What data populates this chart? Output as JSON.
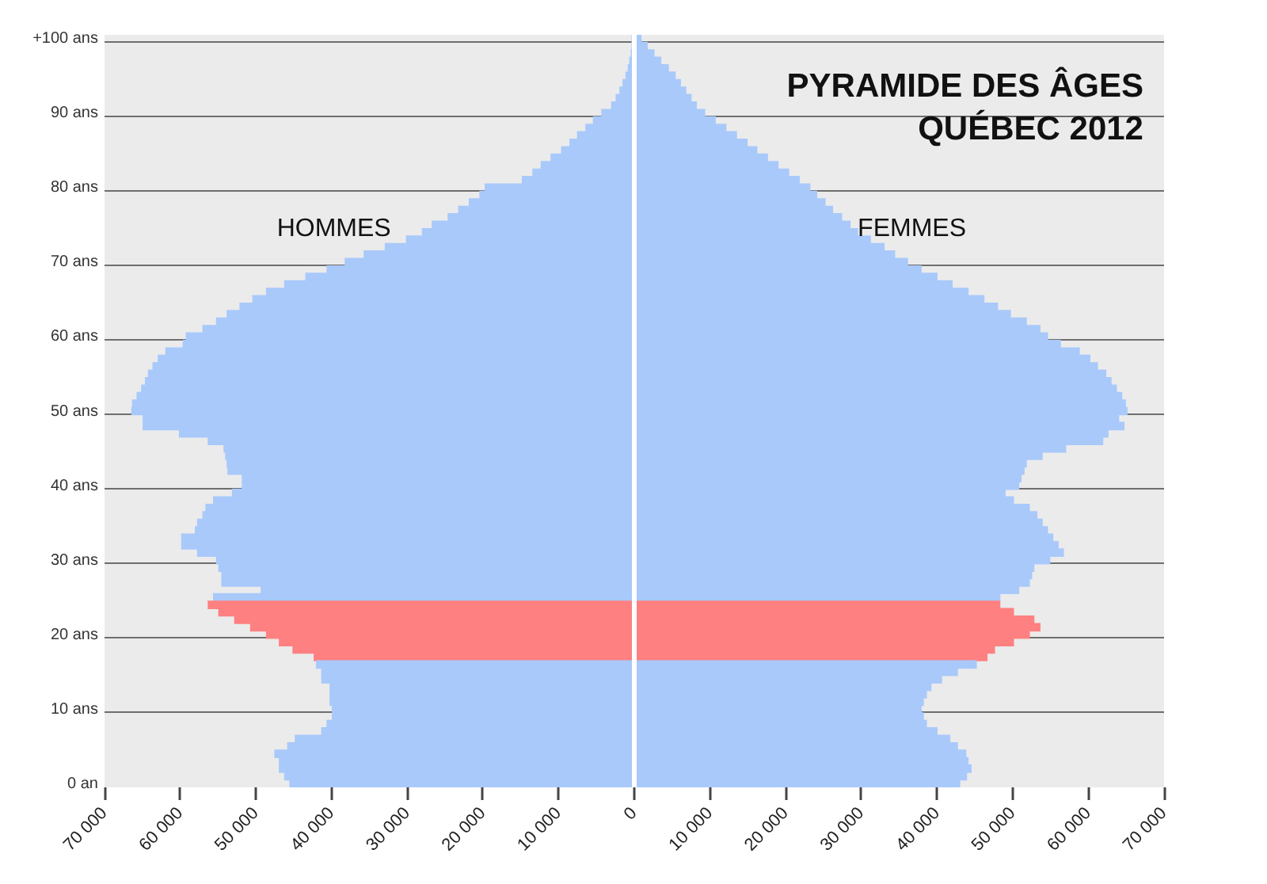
{
  "chart_data": {
    "type": "bar",
    "orientation": "horizontal",
    "stacked": true,
    "title": "PYRAMIDE DES ÂGES\nQUÉBEC 2012",
    "categories": [
      "+100 ans",
      null,
      null,
      null,
      null,
      null,
      null,
      null,
      null,
      null,
      "90 ans",
      null,
      null,
      null,
      null,
      null,
      null,
      null,
      null,
      null,
      "80 ans",
      null,
      null,
      null,
      null,
      null,
      null,
      null,
      null,
      null,
      "70 ans",
      null,
      null,
      null,
      null,
      null,
      null,
      null,
      null,
      null,
      "60 ans",
      null,
      null,
      null,
      null,
      null,
      null,
      null,
      null,
      null,
      "50 ans",
      null,
      null,
      null,
      null,
      null,
      null,
      null,
      null,
      null,
      "40 ans",
      null,
      null,
      null,
      null,
      null,
      null,
      null,
      null,
      null,
      "30 ans",
      null,
      null,
      null,
      null,
      null,
      null,
      null,
      null,
      null,
      "20 ans",
      null,
      null,
      null,
      null,
      null,
      null,
      null,
      null,
      null,
      "10 ans",
      null,
      null,
      null,
      null,
      null,
      null,
      null,
      null,
      null,
      "0 an"
    ],
    "series": [
      {
        "name": "HOMMES",
        "colors": [
          "#a9c9fb",
          "#a9c9fb",
          "#a9c9fb",
          "#a9c9fb",
          "#a9c9fb",
          "#a9c9fb",
          "#a9c9fb",
          "#a9c9fb",
          "#a9c9fb",
          "#a9c9fb",
          "#a9c9fb",
          "#a9c9fb",
          "#a9c9fb",
          "#a9c9fb",
          "#a9c9fb",
          "#a9c9fb",
          "#a9c9fb",
          "#a9c9fb",
          "#a9c9fb",
          "#a9c9fb",
          "#a9c9fb",
          "#a9c9fb",
          "#a9c9fb",
          "#a9c9fb",
          "#a9c9fb",
          "#a9c9fb",
          "#a9c9fb",
          "#a9c9fb",
          "#a9c9fb",
          "#a9c9fb",
          "#a9c9fb",
          "#a9c9fb",
          "#a9c9fb",
          "#a9c9fb",
          "#a9c9fb",
          "#a9c9fb",
          "#a9c9fb",
          "#a9c9fb",
          "#a9c9fb",
          "#a9c9fb",
          "#a9c9fb",
          "#a9c9fb",
          "#a9c9fb",
          "#a9c9fb",
          "#a9c9fb",
          "#a9c9fb",
          "#a9c9fb",
          "#a9c9fb",
          "#a9c9fb",
          "#a9c9fb",
          "#a9c9fb",
          "#a9c9fb",
          "#a9c9fb",
          "#a9c9fb",
          "#a9c9fb",
          "#a9c9fb",
          "#a9c9fb",
          "#a9c9fb",
          "#a9c9fb",
          "#a9c9fb",
          "#a9c9fb",
          "#a9c9fb",
          "#a9c9fb",
          "#a9c9fb",
          "#a9c9fb",
          "#a9c9fb",
          "#a9c9fb",
          "#a9c9fb",
          "#a9c9fb",
          "#a9c9fb",
          "#a9c9fb",
          "#a9c9fb",
          "#a9c9fb",
          "#a9c9fb",
          "#a9c9fb",
          "#a9c9fb",
          "#fe8080",
          "#fe8080",
          "#fe8080",
          "#fe8080",
          "#fe8080",
          "#fe8080",
          "#fe8080",
          "#fe8080",
          "#a9c9fb",
          "#a9c9fb",
          "#a9c9fb",
          "#a9c9fb",
          "#a9c9fb",
          "#a9c9fb",
          "#a9c9fb",
          "#a9c9fb",
          "#a9c9fb",
          "#a9c9fb",
          "#a9c9fb",
          "#a9c9fb",
          "#a9c9fb",
          "#a9c9fb",
          "#a9c9fb",
          "#a9c9fb",
          "#a9c9fb"
        ],
        "values": [
          -300,
          -300,
          -400,
          -600,
          -800,
          -1100,
          -1500,
          -1900,
          -2400,
          -3000,
          -4300,
          -5400,
          -6400,
          -7500,
          -8500,
          -9600,
          -11000,
          -12300,
          -13400,
          -14800,
          -19700,
          -20400,
          -21800,
          -23200,
          -24600,
          -26700,
          -28000,
          -30100,
          -32900,
          -35700,
          -38200,
          -40600,
          -43400,
          -46200,
          -48600,
          -50400,
          -52100,
          -53800,
          -55200,
          -57000,
          -59200,
          -59600,
          -61900,
          -62900,
          -63600,
          -64200,
          -64600,
          -65100,
          -65700,
          -66300,
          -66400,
          -64900,
          -64900,
          -60100,
          -56300,
          -54200,
          -54000,
          -53800,
          -53700,
          -51800,
          -51800,
          -53100,
          -55600,
          -56600,
          -57000,
          -57700,
          -58000,
          -59800,
          -59800,
          -57700,
          -55200,
          -54900,
          -54500,
          -54500,
          -49300,
          -55600,
          -56300,
          -54900,
          -52800,
          -50700,
          -48600,
          -46900,
          -45100,
          -42300,
          -42000,
          -41300,
          -41300,
          -40200,
          -40200,
          -40200,
          -39900,
          -39900,
          -40600,
          -41300,
          -44800,
          -45800,
          -47500,
          -46900,
          -46900,
          -46200,
          -45500
        ]
      },
      {
        "name": "FEMMES",
        "colors": [
          "#a9c9fb",
          "#a9c9fb",
          "#a9c9fb",
          "#a9c9fb",
          "#a9c9fb",
          "#a9c9fb",
          "#a9c9fb",
          "#a9c9fb",
          "#a9c9fb",
          "#a9c9fb",
          "#a9c9fb",
          "#a9c9fb",
          "#a9c9fb",
          "#a9c9fb",
          "#a9c9fb",
          "#a9c9fb",
          "#a9c9fb",
          "#a9c9fb",
          "#a9c9fb",
          "#a9c9fb",
          "#a9c9fb",
          "#a9c9fb",
          "#a9c9fb",
          "#a9c9fb",
          "#a9c9fb",
          "#a9c9fb",
          "#a9c9fb",
          "#a9c9fb",
          "#a9c9fb",
          "#a9c9fb",
          "#a9c9fb",
          "#a9c9fb",
          "#a9c9fb",
          "#a9c9fb",
          "#a9c9fb",
          "#a9c9fb",
          "#a9c9fb",
          "#a9c9fb",
          "#a9c9fb",
          "#a9c9fb",
          "#a9c9fb",
          "#a9c9fb",
          "#a9c9fb",
          "#a9c9fb",
          "#a9c9fb",
          "#a9c9fb",
          "#a9c9fb",
          "#a9c9fb",
          "#a9c9fb",
          "#a9c9fb",
          "#a9c9fb",
          "#a9c9fb",
          "#a9c9fb",
          "#a9c9fb",
          "#a9c9fb",
          "#a9c9fb",
          "#a9c9fb",
          "#a9c9fb",
          "#a9c9fb",
          "#a9c9fb",
          "#a9c9fb",
          "#a9c9fb",
          "#a9c9fb",
          "#a9c9fb",
          "#a9c9fb",
          "#a9c9fb",
          "#a9c9fb",
          "#a9c9fb",
          "#a9c9fb",
          "#a9c9fb",
          "#a9c9fb",
          "#a9c9fb",
          "#a9c9fb",
          "#a9c9fb",
          "#a9c9fb",
          "#a9c9fb",
          "#fe8080",
          "#fe8080",
          "#fe8080",
          "#fe8080",
          "#fe8080",
          "#fe8080",
          "#fe8080",
          "#fe8080",
          "#a9c9fb",
          "#a9c9fb",
          "#a9c9fb",
          "#a9c9fb",
          "#a9c9fb",
          "#a9c9fb",
          "#a9c9fb",
          "#a9c9fb",
          "#a9c9fb",
          "#a9c9fb",
          "#a9c9fb",
          "#a9c9fb",
          "#a9c9fb",
          "#a9c9fb",
          "#a9c9fb",
          "#a9c9fb",
          "#a9c9fb"
        ],
        "values": [
          900,
          1700,
          2600,
          3500,
          4500,
          5400,
          6100,
          6800,
          7500,
          8200,
          9300,
          10700,
          12100,
          13500,
          14900,
          16200,
          17600,
          19000,
          20400,
          21800,
          23200,
          24100,
          25200,
          26200,
          27400,
          28500,
          29500,
          31200,
          33000,
          34400,
          36100,
          37900,
          40000,
          42000,
          44100,
          46200,
          48000,
          49700,
          51800,
          53600,
          54600,
          56300,
          58800,
          60200,
          61200,
          62300,
          63000,
          63700,
          64400,
          64900,
          65100,
          64000,
          64700,
          62600,
          61900,
          57000,
          53900,
          51800,
          51500,
          51100,
          50800,
          49000,
          50100,
          52200,
          53200,
          53900,
          54600,
          55300,
          56000,
          56700,
          54900,
          52800,
          52500,
          52200,
          50800,
          48300,
          48300,
          50100,
          52800,
          53600,
          52200,
          50100,
          47600,
          46600,
          45200,
          42700,
          40600,
          39200,
          38600,
          38200,
          37900,
          38200,
          38600,
          40000,
          41700,
          42700,
          43800,
          44100,
          44500,
          43900,
          43000
        ]
      }
    ],
    "xlim": [
      -70000,
      70000
    ],
    "xticks": [
      {
        "value": -70000,
        "label": "70 000"
      },
      {
        "value": -60000,
        "label": "60 000"
      },
      {
        "value": -50000,
        "label": "50 000"
      },
      {
        "value": -40000,
        "label": "40 000"
      },
      {
        "value": -30000,
        "label": "30 000"
      },
      {
        "value": -20000,
        "label": "20 000"
      },
      {
        "value": -10000,
        "label": "10 000"
      },
      0,
      {
        "value": 10000,
        "label": "10 000"
      },
      {
        "value": 20000,
        "label": "20 000"
      },
      {
        "value": 30000,
        "label": "30 000"
      },
      {
        "value": 40000,
        "label": "40 000"
      },
      {
        "value": 50000,
        "label": "50 000"
      },
      {
        "value": 60000,
        "label": "60 000"
      },
      {
        "value": 70000,
        "label": "70 000"
      }
    ],
    "grid": "y",
    "ref_lines": [
      {
        "axis": "x",
        "value": 0,
        "color": "#ffffff"
      }
    ]
  }
}
